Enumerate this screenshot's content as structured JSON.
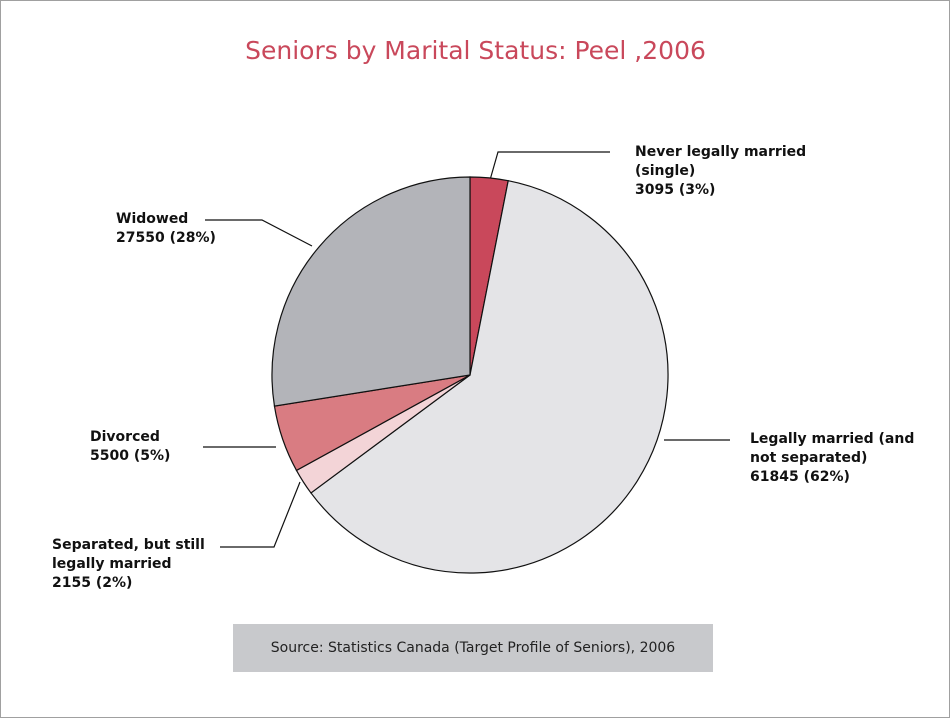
{
  "chart_data": {
    "type": "pie",
    "title": "Seniors by Marital Status: Peel ,2006",
    "categories": [
      "Never legally married (single)",
      "Legally married (and not separated)",
      "Separated, but still legally married",
      "Divorced",
      "Widowed"
    ],
    "values": [
      3095,
      61845,
      2155,
      5500,
      27550
    ],
    "value_labels": [
      "3095 (3%)",
      "61845 (62%)",
      "2155 (2%)",
      "5500 (5%)",
      "27550 (28%)"
    ],
    "colors": [
      "#c9485b",
      "#e4e4e7",
      "#f3d4d7",
      "#d97c82",
      "#b3b4b9"
    ],
    "source": "Source:  Statistics Canada (Target Profile of Seniors), 2006"
  }
}
